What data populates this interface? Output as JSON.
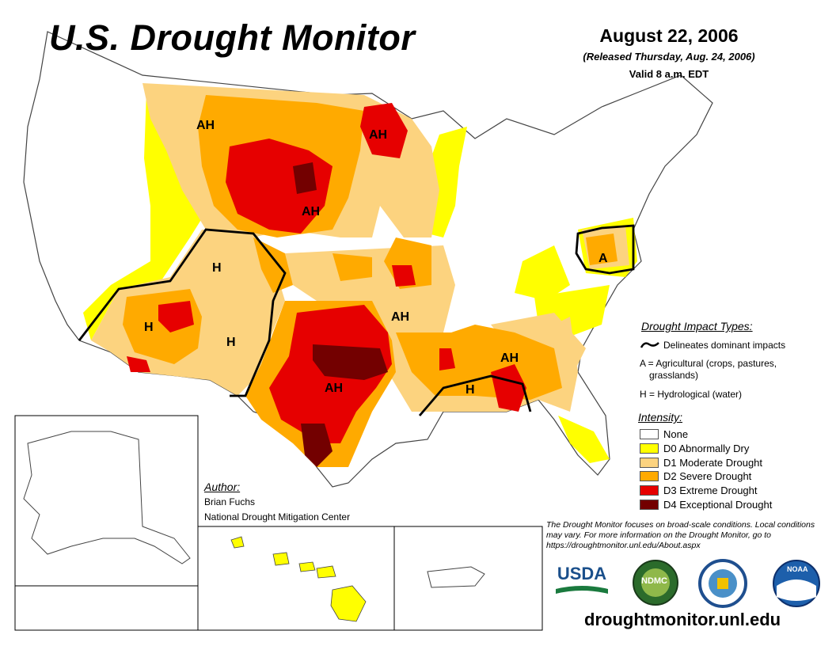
{
  "title": "U.S. Drought Monitor",
  "date": "August 22, 2006",
  "released": "(Released Thursday, Aug. 24, 2006)",
  "valid": "Valid 8 a.m. EDT",
  "impact_types": {
    "heading": "Drought Impact Types:",
    "delineates": "Delineates dominant impacts",
    "agricultural": "A = Agricultural (crops, pastures,",
    "agricultural_2": "grasslands)",
    "hydrological": "H = Hydrological (water)"
  },
  "intensity": {
    "heading": "Intensity:",
    "levels": [
      {
        "label": "None",
        "color": "#ffffff"
      },
      {
        "label": "D0 Abnormally Dry",
        "color": "#ffff00"
      },
      {
        "label": "D1 Moderate Drought",
        "color": "#fcd37f"
      },
      {
        "label": "D2 Severe Drought",
        "color": "#ffaa00"
      },
      {
        "label": "D3 Extreme Drought",
        "color": "#e60000"
      },
      {
        "label": "D4 Exceptional Drought",
        "color": "#730000"
      }
    ]
  },
  "author": {
    "heading": "Author:",
    "name": "Brian Fuchs",
    "org": "National Drought Mitigation Center"
  },
  "note": "The Drought Monitor focuses on broad-scale conditions. Local conditions may vary. For more information on the Drought Monitor, go to https://droughtmonitor.unl.edu/About.aspx",
  "url": "droughtmonitor.unl.edu",
  "region_labels": [
    "AH",
    "AH",
    "AH",
    "H",
    "H",
    "H",
    "AH",
    "AH",
    "AH",
    "H",
    "A"
  ],
  "logos": {
    "usda": "USDA",
    "ndmc": "NDMC",
    "noaa": "NOAA"
  }
}
